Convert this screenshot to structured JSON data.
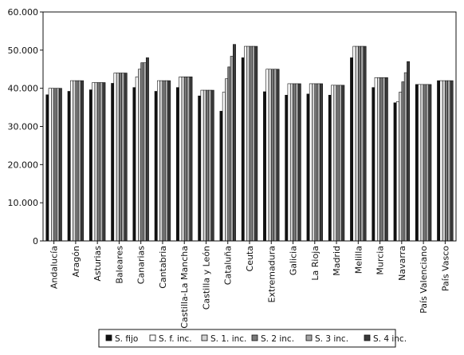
{
  "chart_data": {
    "type": "bar",
    "title": "",
    "xlabel": "",
    "ylabel": "",
    "ylim": [
      0,
      60000
    ],
    "yticks": [
      0,
      10000,
      20000,
      30000,
      40000,
      50000,
      60000
    ],
    "ytick_labels": [
      "0",
      "10.000",
      "20.000",
      "30.000",
      "40.000",
      "50.000",
      "60.000"
    ],
    "grid": false,
    "legend_position": "bottom",
    "categories": [
      "Andalucía",
      "Aragón",
      "Asturias",
      "Baleares",
      "Canarias",
      "Cantabria",
      "Castilla-La Mancha",
      "Castilla y León",
      "Cataluña",
      "Ceuta",
      "Extremadura",
      "Galicia",
      "La Rioja",
      "Madrid",
      "Melilla",
      "Murcia",
      "Navarra",
      "País Valenciano",
      "País Vasco"
    ],
    "series": [
      {
        "name": "S. fijo",
        "color": "#111111",
        "values": [
          38300,
          39200,
          39600,
          41300,
          40200,
          39200,
          40200,
          38000,
          34000,
          48000,
          39100,
          38200,
          38500,
          38200,
          48000,
          40200,
          36200,
          41000,
          42000
        ]
      },
      {
        "name": "S. f. inc.",
        "color": "#ffffff",
        "values": [
          40000,
          42000,
          41500,
          44000,
          43000,
          42000,
          43000,
          39500,
          39000,
          51000,
          45000,
          41200,
          41200,
          40800,
          51000,
          42800,
          36500,
          41000,
          42000
        ]
      },
      {
        "name": "S. 1. inc.",
        "color": "#d2d2d2",
        "values": [
          40000,
          42000,
          41500,
          44000,
          45000,
          42000,
          43000,
          39500,
          42500,
          51000,
          45000,
          41200,
          41200,
          40800,
          51000,
          42800,
          39000,
          41000,
          42000
        ]
      },
      {
        "name": "S. 2 inc.",
        "color": "#7a7a7a",
        "values": [
          40000,
          42000,
          41500,
          44000,
          46700,
          42000,
          43000,
          39500,
          45600,
          51000,
          45000,
          41200,
          41200,
          40800,
          51000,
          42800,
          41700,
          41000,
          42000
        ]
      },
      {
        "name": "S. 3 inc.",
        "color": "#a4a4a4",
        "values": [
          40000,
          42000,
          41500,
          44000,
          46700,
          42000,
          43000,
          39500,
          48400,
          51000,
          45000,
          41200,
          41200,
          40800,
          51000,
          42800,
          44100,
          41000,
          42000
        ]
      },
      {
        "name": "S. 4 inc.",
        "color": "#3a3a3a",
        "values": [
          40000,
          42000,
          41500,
          44000,
          48000,
          42000,
          43000,
          39500,
          51500,
          51000,
          45000,
          41200,
          41200,
          40800,
          51000,
          42800,
          47000,
          41000,
          42000
        ]
      }
    ]
  }
}
